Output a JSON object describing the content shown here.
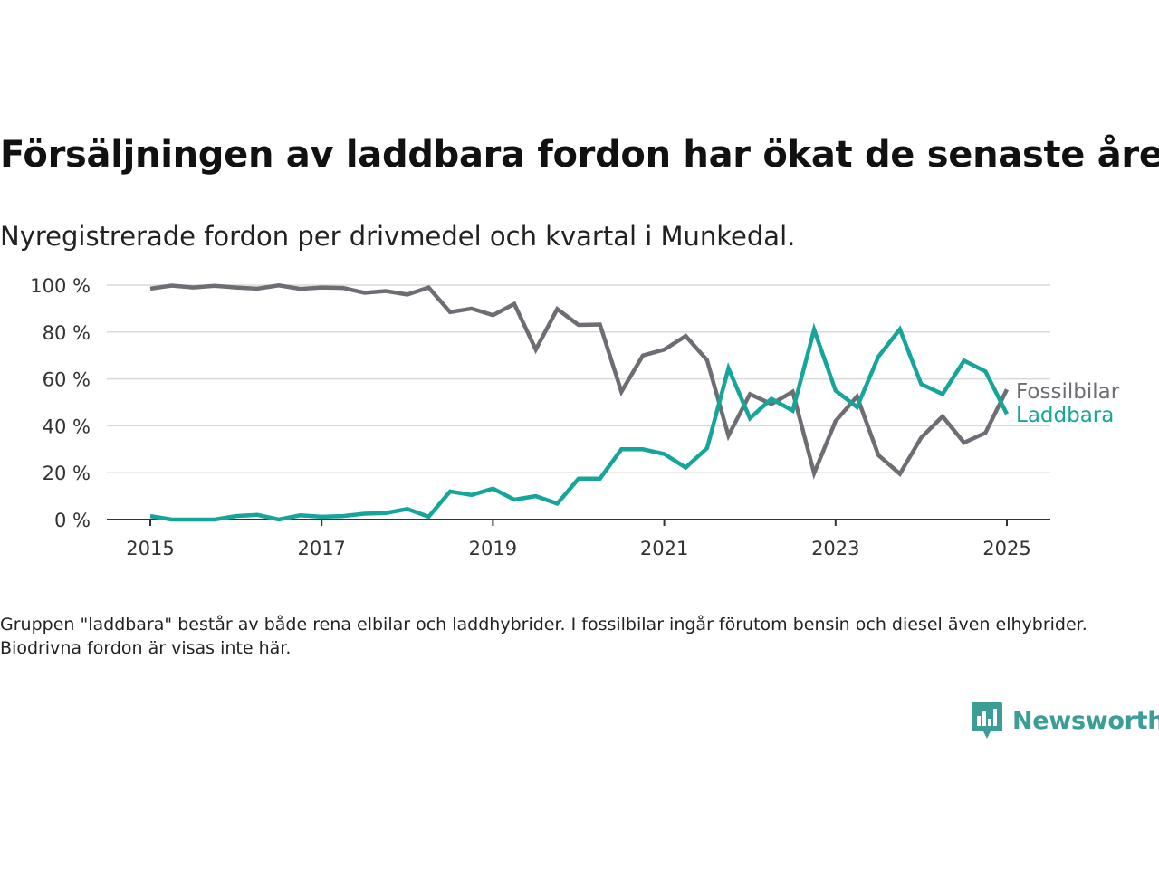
{
  "title": "Försäljningen av laddbara fordon har ökat de senaste åren",
  "subtitle": "Nyregistrerade fordon per drivmedel och kvartal i Munkedal.",
  "footnote": "Gruppen \"laddbara\" består av både rena elbilar och laddhybrider. I fossilbilar ingår förutom bensin och diesel även elhybrider. Biodrivna fordon är visas inte här.",
  "logo": {
    "text": "Newsworthy",
    "icon": "newsworthy-bar-chart-icon"
  },
  "colors": {
    "fossil": "#6e6d73",
    "laddbara": "#16a59a",
    "grid": "#d9d9d9",
    "axis": "#333333"
  },
  "chart_data": {
    "type": "line",
    "x_unit": "quarter",
    "x": [
      "2015Q1",
      "2015Q2",
      "2015Q3",
      "2015Q4",
      "2016Q1",
      "2016Q2",
      "2016Q3",
      "2016Q4",
      "2017Q1",
      "2017Q2",
      "2017Q3",
      "2017Q4",
      "2018Q1",
      "2018Q2",
      "2018Q3",
      "2018Q4",
      "2019Q1",
      "2019Q2",
      "2019Q3",
      "2019Q4",
      "2020Q1",
      "2020Q2",
      "2020Q3",
      "2020Q4",
      "2021Q1",
      "2021Q2",
      "2021Q3",
      "2021Q4",
      "2022Q1",
      "2022Q2",
      "2022Q3",
      "2022Q4",
      "2023Q1",
      "2023Q2",
      "2023Q3",
      "2023Q4",
      "2024Q1",
      "2024Q2",
      "2024Q3",
      "2024Q4",
      "2025Q1"
    ],
    "xticks": [
      "2015",
      "2017",
      "2019",
      "2021",
      "2023",
      "2025"
    ],
    "yticks": [
      "0 %",
      "20 %",
      "40 %",
      "60 %",
      "80 %",
      "100 %"
    ],
    "ylim": [
      0,
      100
    ],
    "series": [
      {
        "name": "Fossilbilar",
        "color": "#6e6d73",
        "values": [
          98.5,
          99.8,
          99,
          99.7,
          99,
          98.5,
          99.9,
          98.4,
          99,
          98.8,
          96.7,
          97.5,
          96,
          99,
          88.5,
          90,
          87.2,
          92,
          72.5,
          89.8,
          83,
          83.2,
          54.5,
          70,
          72.5,
          78.3,
          68,
          35.8,
          53.5,
          49.3,
          54.5,
          19.8,
          42,
          52.5,
          27.5,
          19.5,
          35,
          44,
          32.8,
          37,
          55.5
        ]
      },
      {
        "name": "Laddbara",
        "color": "#16a59a",
        "values": [
          1.5,
          0,
          0,
          0,
          1.5,
          2,
          0,
          1.8,
          1.2,
          1.5,
          2.5,
          2.8,
          4.5,
          1.2,
          12,
          10.5,
          13.2,
          8.5,
          10,
          6.8,
          17.5,
          17.5,
          30,
          30,
          28,
          22.2,
          30.5,
          64.5,
          43.2,
          51.5,
          46.5,
          81,
          55,
          48,
          69.5,
          81.2,
          57.8,
          53.5,
          67.8,
          63.2,
          45
        ]
      }
    ]
  }
}
